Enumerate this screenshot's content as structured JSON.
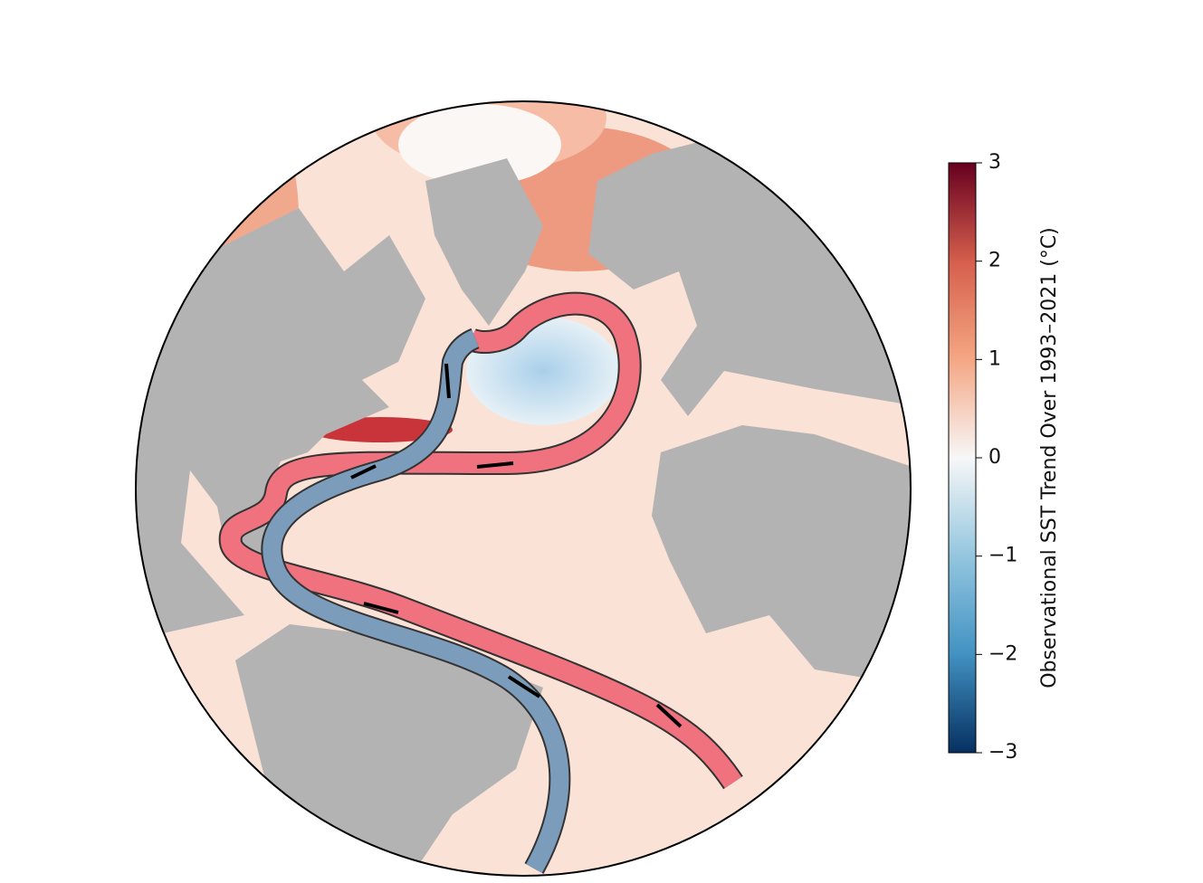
{
  "colorbar": {
    "label": "Observational SST Trend Over 1993–2021 (°C)",
    "range": [
      -3,
      3
    ],
    "ticks": [
      {
        "value": 3,
        "label": "3"
      },
      {
        "value": 2,
        "label": "2"
      },
      {
        "value": 1,
        "label": "1"
      },
      {
        "value": 0,
        "label": "0"
      },
      {
        "value": -1,
        "label": "−1"
      },
      {
        "value": -2,
        "label": "−2"
      },
      {
        "value": -3,
        "label": "−3"
      }
    ]
  }
}
